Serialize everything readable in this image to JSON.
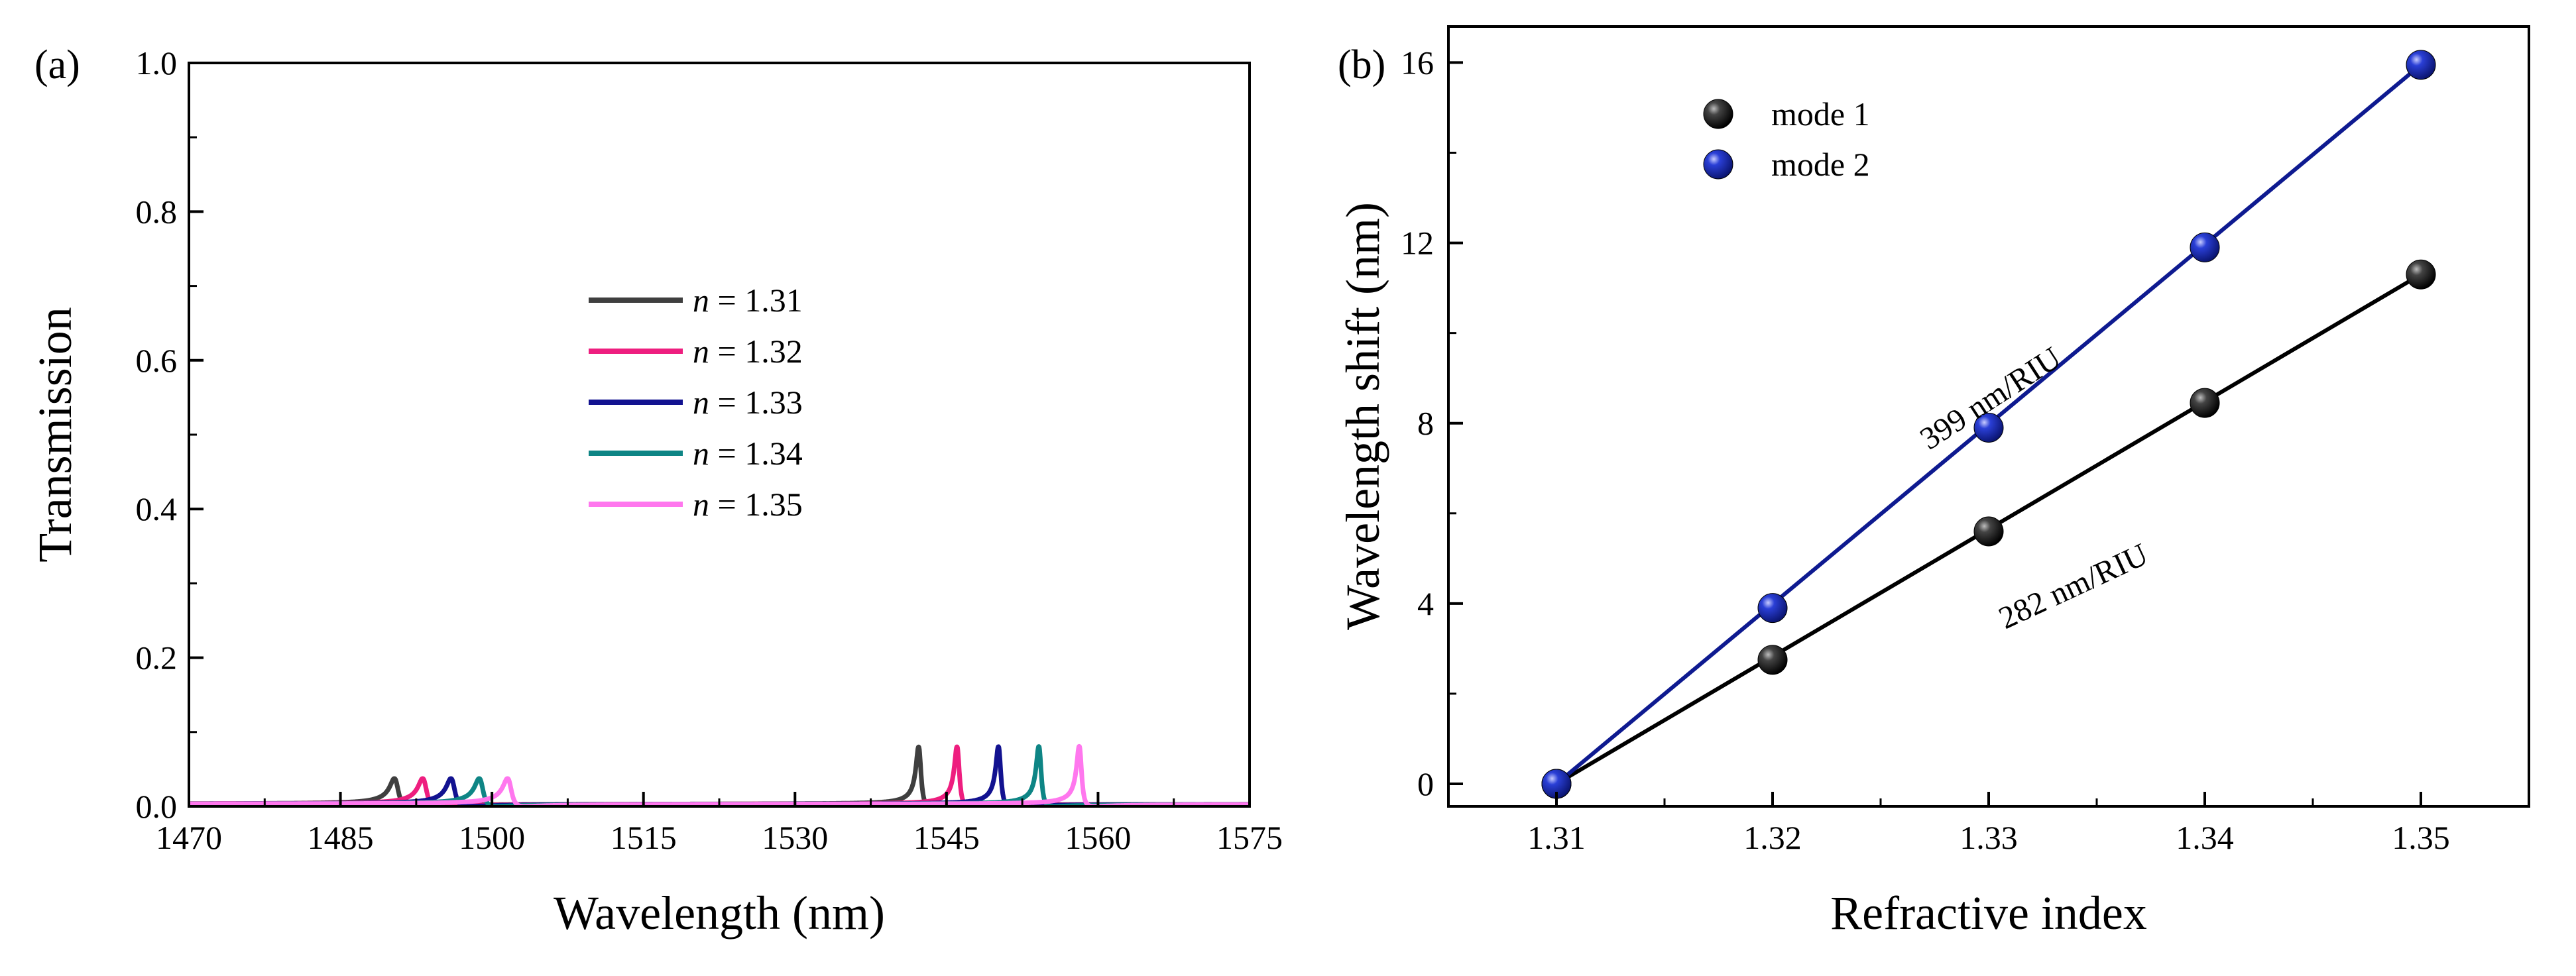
{
  "chart_data": [
    {
      "type": "line",
      "panel_label": "(a)",
      "xlabel": "Wavelength (nm)",
      "ylabel": "Transmission",
      "xlim": [
        1470,
        1575
      ],
      "ylim": [
        0.0,
        1.0
      ],
      "xticks": [
        1470,
        1485,
        1500,
        1515,
        1530,
        1545,
        1560,
        1575
      ],
      "xtick_labels": [
        "1470",
        "1485",
        "1500",
        "1515",
        "1530",
        "1545",
        "1560",
        "1575"
      ],
      "yticks": [
        0.0,
        0.2,
        0.4,
        0.6,
        0.8,
        1.0
      ],
      "ytick_labels": [
        "0.0",
        "0.2",
        "0.4",
        "0.6",
        "0.8",
        "1.0"
      ],
      "legend_position": "center",
      "series": [
        {
          "name": "n = 1.31",
          "legend_var": "n",
          "legend_value": " = 1.31",
          "color": "#3f3f3f",
          "dip1": 1490.5,
          "dip2": 1542.3
        },
        {
          "name": "n = 1.32",
          "legend_var": "n",
          "legend_value": " = 1.32",
          "color": "#ee1e7f",
          "dip1": 1493.3,
          "dip2": 1546.1
        },
        {
          "name": "n = 1.33",
          "legend_var": "n",
          "legend_value": " = 1.33",
          "color": "#121290",
          "dip1": 1496.1,
          "dip2": 1550.2
        },
        {
          "name": "n = 1.34",
          "legend_var": "n",
          "legend_value": " = 1.34",
          "color": "#0e8585",
          "dip1": 1498.9,
          "dip2": 1554.2
        },
        {
          "name": "n = 1.35",
          "legend_var": "n",
          "legend_value": " = 1.35",
          "color": "#ff77ee",
          "dip1": 1501.7,
          "dip2": 1558.2
        }
      ]
    },
    {
      "type": "scatter",
      "panel_label": "(b)",
      "xlabel": "Refractive index",
      "ylabel": "Wavelength shift (nm)",
      "xlim": [
        1.305,
        1.355
      ],
      "ylim": [
        -0.5,
        16.8
      ],
      "xticks": [
        1.31,
        1.32,
        1.33,
        1.34,
        1.35
      ],
      "xtick_labels": [
        "1.31",
        "1.32",
        "1.33",
        "1.34",
        "1.35"
      ],
      "yticks": [
        0,
        4,
        8,
        12,
        16
      ],
      "ytick_labels": [
        "0",
        "4",
        "8",
        "12",
        "16"
      ],
      "legend_position": "top-left",
      "x": [
        1.31,
        1.32,
        1.33,
        1.34,
        1.35
      ],
      "series": [
        {
          "name": "mode 1",
          "color": "#111111",
          "line_color": "#000000",
          "values": [
            0.0,
            2.75,
            5.6,
            8.45,
            11.3
          ],
          "annotation": "282 nm/RIU"
        },
        {
          "name": "mode 2",
          "color": "#1c2fb8",
          "line_color": "#0e1a90",
          "values": [
            0.0,
            3.9,
            7.9,
            11.9,
            15.95
          ],
          "annotation": "399 nm/RIU"
        }
      ]
    }
  ]
}
